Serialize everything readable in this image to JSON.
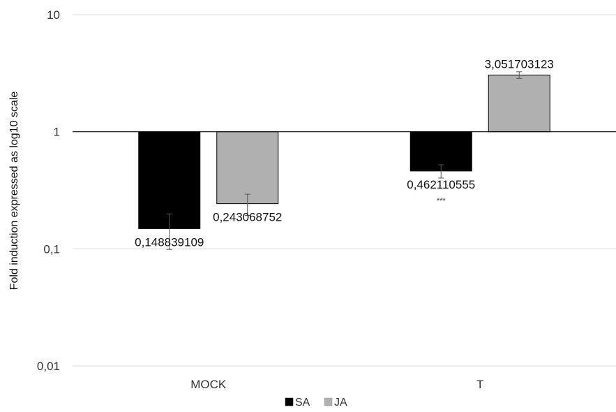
{
  "chart_data": {
    "type": "bar",
    "title": "",
    "xlabel": "",
    "ylabel": "Fold induction expressed as log10 scale",
    "yscale": "log10",
    "ylim": [
      0.01,
      10
    ],
    "baseline": 1,
    "grid": true,
    "legend_position": "bottom",
    "y_ticks": [
      {
        "value": 0.01,
        "label": "0,01"
      },
      {
        "value": 0.1,
        "label": "0,1"
      },
      {
        "value": 1,
        "label": "1"
      },
      {
        "value": 10,
        "label": "10"
      }
    ],
    "categories": [
      "MOCK",
      "T"
    ],
    "series": [
      {
        "name": "SA",
        "color": "#000000",
        "values": [
          0.148839109,
          0.462110555
        ],
        "value_labels": [
          "0,148839109",
          "0,462110555"
        ],
        "error": [
          0.05,
          0.06
        ],
        "annotations": [
          "",
          "***"
        ]
      },
      {
        "name": "JA",
        "color": "#b0b0b0",
        "values": [
          0.243068752,
          3.051703123
        ],
        "value_labels": [
          "0,243068752",
          "3,051703123"
        ],
        "error": [
          0.05,
          0.2
        ],
        "annotations": [
          "",
          ""
        ]
      }
    ]
  }
}
